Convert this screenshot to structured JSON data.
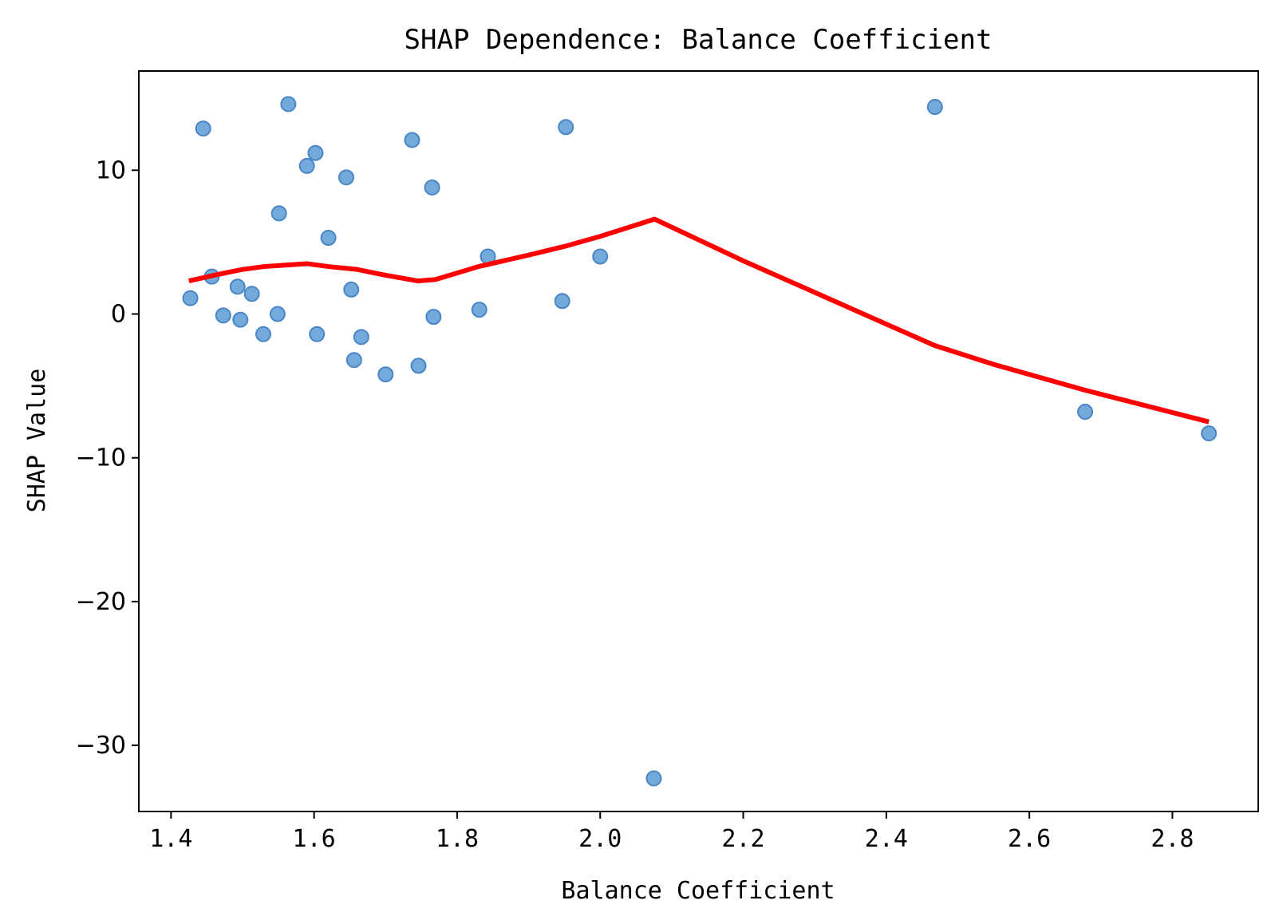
{
  "chart_data": {
    "type": "scatter",
    "title": "SHAP Dependence: Balance Coefficient",
    "xlabel": "Balance Coefficient",
    "ylabel": "SHAP Value",
    "xlim": [
      1.355,
      2.92
    ],
    "ylim": [
      -34.6,
      16.9
    ],
    "x_ticks": [
      1.4,
      1.6,
      1.8,
      2.0,
      2.2,
      2.4,
      2.6,
      2.8
    ],
    "x_tick_labels": [
      "1.4",
      "1.6",
      "1.8",
      "2.0",
      "2.2",
      "2.4",
      "2.6",
      "2.8"
    ],
    "y_ticks": [
      10,
      0,
      -10,
      -20,
      -30
    ],
    "y_tick_labels": [
      "10",
      "0",
      "−10",
      "−20",
      "−30"
    ],
    "grid": false,
    "series": [
      {
        "kind": "scatter",
        "color": "#5b9bd5",
        "points": [
          [
            1.427,
            1.1
          ],
          [
            1.445,
            12.9
          ],
          [
            1.457,
            2.6
          ],
          [
            1.473,
            -0.1
          ],
          [
            1.493,
            1.9
          ],
          [
            1.497,
            -0.4
          ],
          [
            1.513,
            1.4
          ],
          [
            1.529,
            -1.4
          ],
          [
            1.549,
            0.0
          ],
          [
            1.551,
            7.0
          ],
          [
            1.564,
            14.6
          ],
          [
            1.59,
            10.3
          ],
          [
            1.602,
            11.2
          ],
          [
            1.604,
            -1.4
          ],
          [
            1.62,
            5.3
          ],
          [
            1.645,
            9.5
          ],
          [
            1.652,
            1.7
          ],
          [
            1.656,
            -3.2
          ],
          [
            1.666,
            -1.6
          ],
          [
            1.7,
            -4.2
          ],
          [
            1.737,
            12.1
          ],
          [
            1.746,
            -3.6
          ],
          [
            1.765,
            8.8
          ],
          [
            1.767,
            -0.2
          ],
          [
            1.831,
            0.3
          ],
          [
            1.843,
            4.0
          ],
          [
            1.947,
            0.9
          ],
          [
            1.952,
            13.0
          ],
          [
            2.0,
            4.0
          ],
          [
            2.075,
            -32.3
          ],
          [
            2.468,
            14.4
          ],
          [
            2.678,
            -6.8
          ],
          [
            2.851,
            -8.3
          ]
        ]
      },
      {
        "kind": "line",
        "color": "#ff0000",
        "points": [
          [
            1.425,
            2.3
          ],
          [
            1.47,
            2.8
          ],
          [
            1.5,
            3.1
          ],
          [
            1.53,
            3.3
          ],
          [
            1.56,
            3.4
          ],
          [
            1.59,
            3.5
          ],
          [
            1.62,
            3.3
          ],
          [
            1.66,
            3.1
          ],
          [
            1.7,
            2.7
          ],
          [
            1.745,
            2.3
          ],
          [
            1.77,
            2.4
          ],
          [
            1.83,
            3.3
          ],
          [
            1.9,
            4.1
          ],
          [
            1.95,
            4.7
          ],
          [
            2.0,
            5.4
          ],
          [
            2.076,
            6.6
          ],
          [
            2.2,
            3.7
          ],
          [
            2.35,
            0.4
          ],
          [
            2.468,
            -2.2
          ],
          [
            2.55,
            -3.5
          ],
          [
            2.678,
            -5.3
          ],
          [
            2.851,
            -7.5
          ]
        ]
      }
    ]
  }
}
